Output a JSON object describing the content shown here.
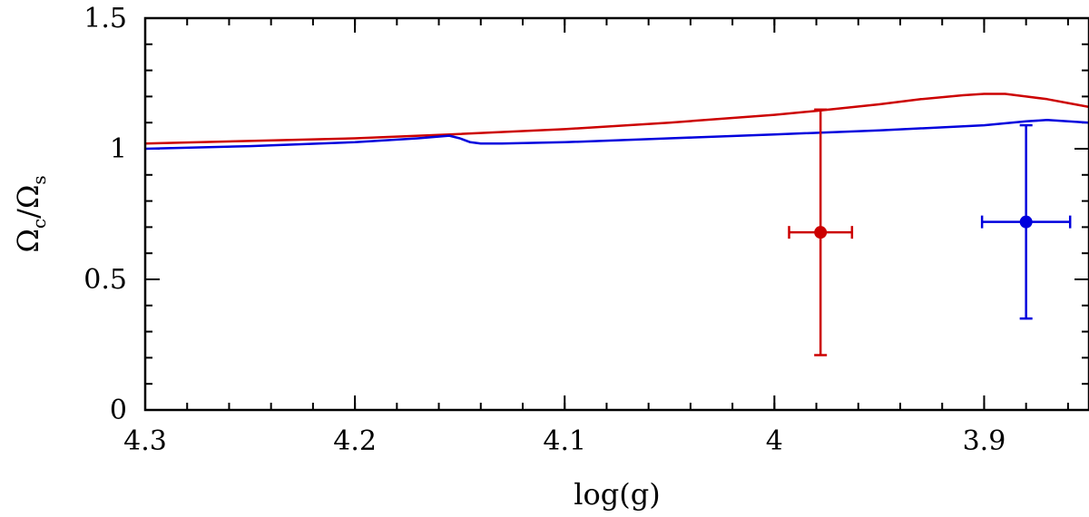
{
  "chart_data": {
    "type": "line",
    "xlabel": "log(g)",
    "ylabel": {
      "main1": "Ω",
      "sub1": "c",
      "slash": "/",
      "main2": "Ω",
      "sub2": "s"
    },
    "xlim": [
      4.3,
      3.85
    ],
    "ylim": [
      0,
      1.5
    ],
    "x_ticks": [
      {
        "value": 4.3,
        "label": "4.3"
      },
      {
        "value": 4.2,
        "label": "4.2"
      },
      {
        "value": 4.1,
        "label": "4.1"
      },
      {
        "value": 4.0,
        "label": "4"
      },
      {
        "value": 3.9,
        "label": "3.9"
      }
    ],
    "y_ticks": [
      {
        "value": 0,
        "label": "0"
      },
      {
        "value": 0.5,
        "label": "0.5"
      },
      {
        "value": 1.0,
        "label": "1"
      },
      {
        "value": 1.5,
        "label": "1.5"
      }
    ],
    "x_minor_step": 0.02,
    "y_minor_step": 0.1,
    "series": [
      {
        "name": "red-model",
        "color": "#cc0000",
        "x": [
          4.3,
          4.25,
          4.2,
          4.155,
          4.1,
          4.05,
          4.0,
          3.98,
          3.95,
          3.93,
          3.91,
          3.9,
          3.89,
          3.88,
          3.87,
          3.86,
          3.85
        ],
        "y": [
          1.02,
          1.03,
          1.04,
          1.055,
          1.075,
          1.1,
          1.13,
          1.145,
          1.17,
          1.19,
          1.205,
          1.21,
          1.21,
          1.2,
          1.19,
          1.175,
          1.16
        ]
      },
      {
        "name": "blue-model",
        "color": "#0000dd",
        "x": [
          4.3,
          4.25,
          4.2,
          4.17,
          4.155,
          4.15,
          4.145,
          4.14,
          4.13,
          4.1,
          4.05,
          4.0,
          3.95,
          3.9,
          3.88,
          3.87,
          3.86,
          3.85
        ],
        "y": [
          1.0,
          1.01,
          1.025,
          1.04,
          1.05,
          1.04,
          1.025,
          1.02,
          1.02,
          1.025,
          1.04,
          1.055,
          1.07,
          1.09,
          1.105,
          1.11,
          1.105,
          1.1
        ]
      }
    ],
    "points": [
      {
        "name": "red-observation",
        "color": "#cc0000",
        "x": 3.978,
        "y": 0.68,
        "xerr": 0.015,
        "yerr_low": 0.21,
        "yerr_high": 1.15
      },
      {
        "name": "blue-observation",
        "color": "#0000dd",
        "x": 3.88,
        "y": 0.72,
        "xerr": 0.021,
        "yerr_low": 0.35,
        "yerr_high": 1.09
      }
    ]
  }
}
